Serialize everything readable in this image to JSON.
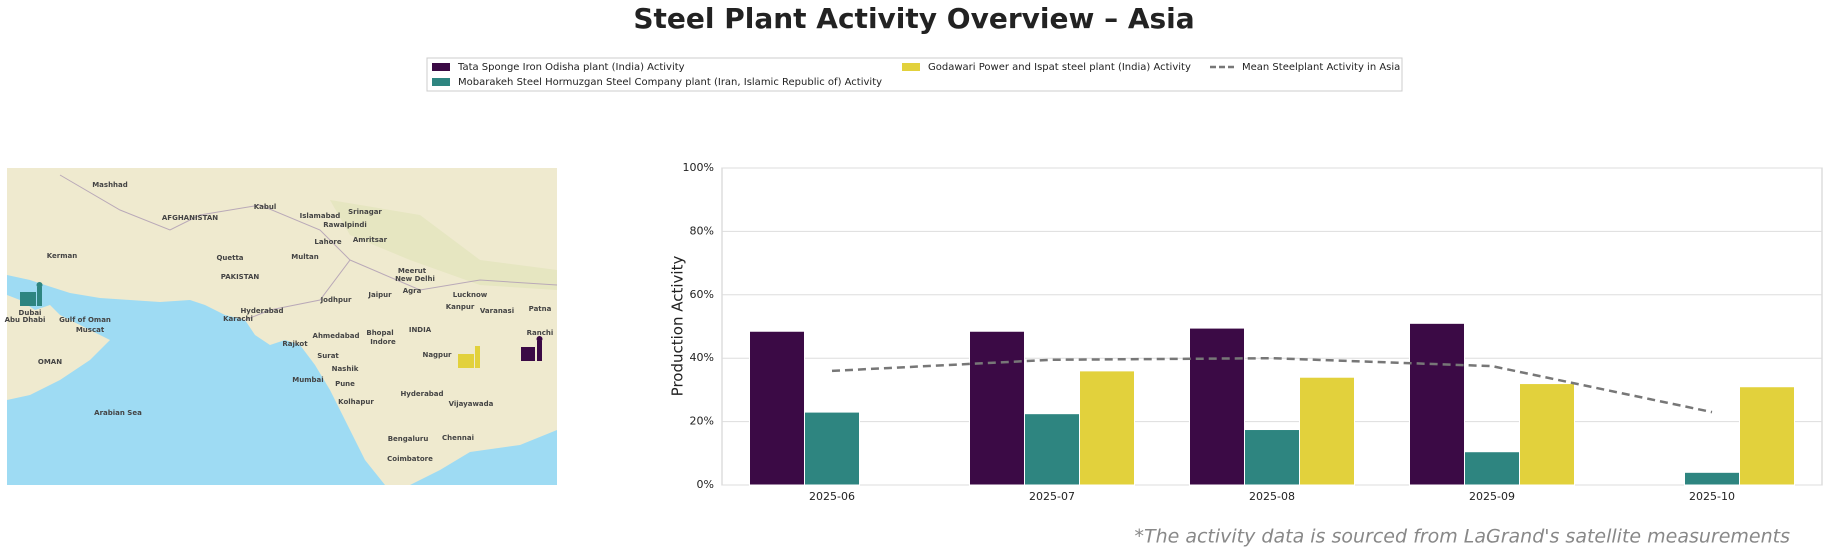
{
  "chart_data": {
    "type": "bar",
    "title": "Steel Plant Activity Overview – Asia",
    "y_label": "Production Activity",
    "categories": [
      "2025-06",
      "2025-07",
      "2025-08",
      "2025-09",
      "2025-10"
    ],
    "series": [
      {
        "name": "Tata Sponge Iron Odisha plant (India) Activity",
        "color": "#3b0a45",
        "values": [
          48.5,
          48.5,
          49.5,
          51,
          null
        ]
      },
      {
        "name": "Mobarakeh Steel Hormuzgan Steel Company plant (Iran, Islamic Republic of) Activity",
        "color": "#2e8580",
        "values": [
          23,
          22.5,
          17.5,
          10.5,
          4
        ]
      },
      {
        "name": "Godawari Power and Ispat steel plant (India) Activity",
        "color": "#e2d13c",
        "values": [
          null,
          36,
          34,
          32,
          31
        ]
      },
      {
        "name": "Mean Steelplant Activity in Asia",
        "type": "line",
        "color": "#777777",
        "values": [
          36,
          39.5,
          40,
          37.5,
          23
        ]
      }
    ],
    "ylim": [
      0,
      100
    ],
    "yticks": [
      {
        "value": 0,
        "label": "0%"
      },
      {
        "value": 20,
        "label": "20%"
      },
      {
        "value": 40,
        "label": "40%"
      },
      {
        "value": 60,
        "label": "60%"
      },
      {
        "value": 80,
        "label": "80%"
      },
      {
        "value": 100,
        "label": "100%"
      }
    ],
    "grid": true
  },
  "map": {
    "labels": [
      "Mashhad",
      "AFGHANISTAN",
      "Kabul",
      "Islamabad",
      "Srinagar",
      "Rawalpindi",
      "Lahore",
      "Amritsar",
      "Kerman",
      "Quetta",
      "Multan",
      "PAKISTAN",
      "Meerut",
      "New Delhi",
      "Jaipur",
      "Agra",
      "Lucknow",
      "Kanpur",
      "Varanasi",
      "Patna",
      "Hyderabad",
      "Karachi",
      "Dubai",
      "Abu Dhabi",
      "Gulf of Oman",
      "Muscat",
      "OMAN",
      "Ahmedabad",
      "Bhopal",
      "Indore",
      "INDIA",
      "Rajkot",
      "Surat",
      "Nagpur",
      "Ranchi",
      "Mumbai",
      "Nashik",
      "Pune",
      "Kolhapur",
      "Hyderabad",
      "Vijayawada",
      "Arabian Sea",
      "Bengaluru",
      "Chennai",
      "Coimbatore",
      "Jodhpur"
    ]
  },
  "footnote": "*The activity data is sourced from LaGrand's satellite measurements"
}
